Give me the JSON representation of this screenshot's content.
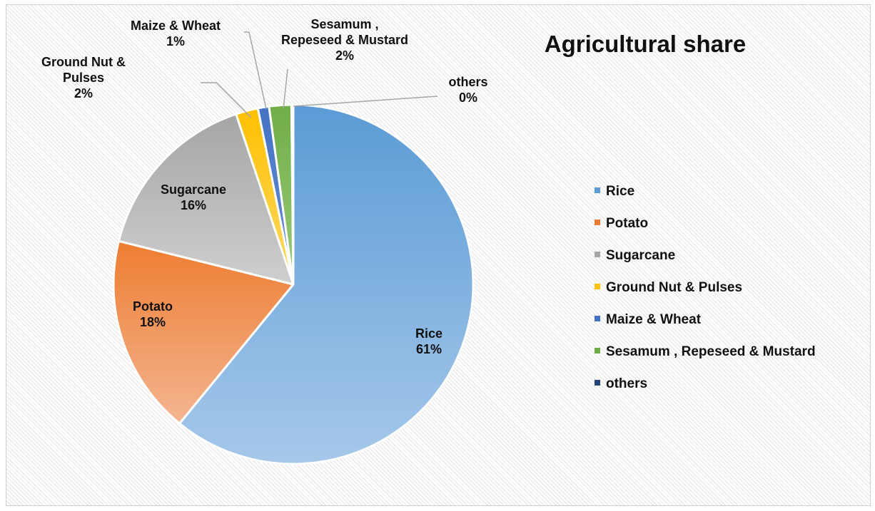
{
  "chart_data": {
    "type": "pie",
    "title": "Agricultural share",
    "legend_position": "right",
    "slices": [
      {
        "label": "Rice",
        "value": 61,
        "value_label": "61%",
        "color": "#5B9BD5",
        "color_light": "#A6C8EA"
      },
      {
        "label": "Potato",
        "value": 18,
        "value_label": "18%",
        "color": "#ED7D31",
        "color_light": "#F4B591"
      },
      {
        "label": "Sugarcane",
        "value": 16,
        "value_label": "16%",
        "color": "#A5A5A5",
        "color_light": "#CFCFCF"
      },
      {
        "label": "Ground Nut & Pulses",
        "value": 2,
        "value_label": "2%",
        "color": "#FFC000",
        "color_light": "#FFD966"
      },
      {
        "label": "Maize & Wheat",
        "value": 1,
        "value_label": "1%",
        "color": "#4472C4",
        "color_light": "#6C8FD3"
      },
      {
        "label": "Sesamum , Repeseed & Mustard",
        "value": 2,
        "value_label": "2%",
        "color": "#70AD47",
        "color_light": "#9BCB7A"
      },
      {
        "label": "others",
        "value": 0,
        "value_label": "0%",
        "color": "#264478",
        "color_light": "#2F5597"
      }
    ],
    "slice_label_lines": [
      [
        "Rice",
        "61%"
      ],
      [
        "Potato",
        "18%"
      ],
      [
        "Sugarcane",
        "16%"
      ],
      [
        "Ground Nut &",
        "Pulses",
        "2%"
      ],
      [
        "Maize & Wheat",
        "1%"
      ],
      [
        "Sesamum ,",
        "Repeseed & Mustard",
        "2%"
      ],
      [
        "others",
        "0%"
      ]
    ]
  }
}
